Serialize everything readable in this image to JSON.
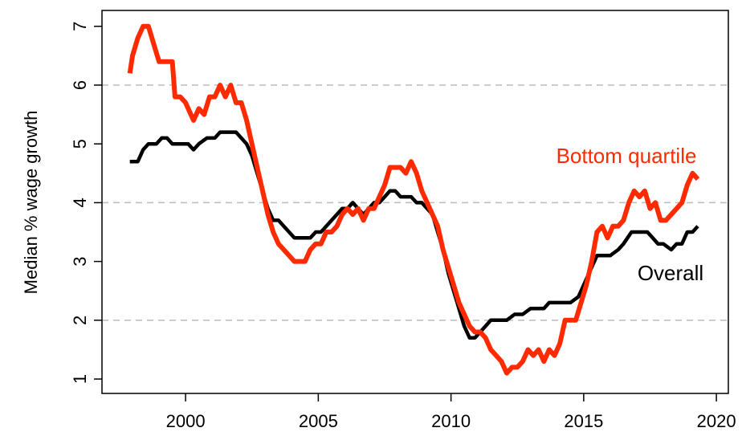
{
  "chart_data": {
    "type": "line",
    "y_label": "Median % wage growth",
    "xlim": [
      1996.85,
      2020.45
    ],
    "xticks": [
      2000,
      2005,
      2010,
      2015,
      2020
    ],
    "ylim": [
      0.755,
      7.27
    ],
    "yticks": [
      1,
      2,
      3,
      4,
      5,
      6,
      7
    ],
    "grid_values": [
      2,
      4,
      6
    ],
    "grid": true,
    "series": [
      {
        "name": "Bottom quartile",
        "color": "#ff2a00",
        "x": [
          1997.9,
          1998.0,
          1998.2,
          1998.4,
          1998.6,
          1998.8,
          1999.0,
          1999.3,
          1999.5,
          1999.6,
          1999.8,
          2000.0,
          2000.2,
          2000.3,
          2000.5,
          2000.7,
          2000.9,
          2001.1,
          2001.3,
          2001.5,
          2001.7,
          2001.9,
          2002.1,
          2002.3,
          2002.5,
          2002.7,
          2002.9,
          2003.1,
          2003.3,
          2003.5,
          2003.7,
          2003.9,
          2004.1,
          2004.3,
          2004.5,
          2004.7,
          2004.9,
          2005.1,
          2005.3,
          2005.5,
          2005.7,
          2005.9,
          2006.1,
          2006.3,
          2006.5,
          2006.7,
          2006.9,
          2007.1,
          2007.3,
          2007.5,
          2007.7,
          2007.9,
          2008.1,
          2008.3,
          2008.5,
          2008.7,
          2008.9,
          2009.1,
          2009.3,
          2009.5,
          2009.7,
          2009.9,
          2010.1,
          2010.3,
          2010.5,
          2010.7,
          2010.9,
          2011.1,
          2011.3,
          2011.5,
          2011.7,
          2011.9,
          2012.1,
          2012.3,
          2012.5,
          2012.7,
          2012.9,
          2013.1,
          2013.3,
          2013.5,
          2013.7,
          2013.9,
          2014.1,
          2014.3,
          2014.5,
          2014.7,
          2014.9,
          2015.1,
          2015.3,
          2015.5,
          2015.7,
          2015.9,
          2016.1,
          2016.3,
          2016.5,
          2016.7,
          2016.9,
          2017.1,
          2017.3,
          2017.5,
          2017.7,
          2017.9,
          2018.1,
          2018.3,
          2018.5,
          2018.7,
          2018.9,
          2019.1,
          2019.3
        ],
        "values": [
          6.2,
          6.5,
          6.8,
          7.0,
          7.0,
          6.7,
          6.4,
          6.4,
          6.4,
          5.8,
          5.8,
          5.7,
          5.5,
          5.4,
          5.6,
          5.5,
          5.8,
          5.8,
          6.0,
          5.8,
          6.0,
          5.7,
          5.7,
          5.4,
          5.0,
          4.6,
          4.2,
          3.8,
          3.5,
          3.3,
          3.2,
          3.1,
          3.0,
          3.0,
          3.0,
          3.2,
          3.3,
          3.3,
          3.5,
          3.5,
          3.6,
          3.8,
          3.9,
          3.8,
          3.9,
          3.7,
          3.9,
          3.9,
          4.1,
          4.3,
          4.6,
          4.6,
          4.6,
          4.5,
          4.7,
          4.5,
          4.2,
          4.0,
          3.8,
          3.6,
          3.2,
          2.9,
          2.6,
          2.3,
          2.1,
          1.9,
          1.8,
          1.8,
          1.7,
          1.5,
          1.4,
          1.3,
          1.1,
          1.2,
          1.2,
          1.3,
          1.5,
          1.4,
          1.5,
          1.3,
          1.5,
          1.4,
          1.6,
          2.0,
          2.0,
          2.0,
          2.3,
          2.6,
          3.0,
          3.5,
          3.6,
          3.4,
          3.6,
          3.6,
          3.7,
          4.0,
          4.2,
          4.1,
          4.2,
          3.9,
          4.0,
          3.7,
          3.7,
          3.8,
          3.9,
          4.0,
          4.3,
          4.5,
          4.4
        ]
      },
      {
        "name": "Overall",
        "color": "#000000",
        "x": [
          1997.9,
          1998.2,
          1998.4,
          1998.6,
          1998.9,
          1999.1,
          1999.3,
          1999.5,
          1999.8,
          2000.1,
          2000.3,
          2000.5,
          2000.8,
          2001.1,
          2001.3,
          2001.6,
          2001.9,
          2002.1,
          2002.3,
          2002.5,
          2002.7,
          2002.9,
          2003.1,
          2003.3,
          2003.5,
          2003.7,
          2003.9,
          2004.1,
          2004.5,
          2004.7,
          2004.9,
          2005.1,
          2005.3,
          2005.5,
          2005.7,
          2005.9,
          2006.1,
          2006.3,
          2006.5,
          2006.7,
          2006.9,
          2007.1,
          2007.3,
          2007.5,
          2007.7,
          2007.9,
          2008.1,
          2008.5,
          2008.7,
          2008.9,
          2009.1,
          2009.3,
          2009.5,
          2009.7,
          2009.9,
          2010.1,
          2010.3,
          2010.5,
          2010.7,
          2010.9,
          2011.1,
          2011.3,
          2011.5,
          2011.9,
          2012.1,
          2012.4,
          2012.7,
          2013.0,
          2013.5,
          2013.7,
          2014.0,
          2014.5,
          2014.8,
          2015.0,
          2015.3,
          2015.5,
          2015.8,
          2016.0,
          2016.3,
          2016.5,
          2016.8,
          2017.1,
          2017.4,
          2017.6,
          2017.8,
          2018.0,
          2018.3,
          2018.5,
          2018.7,
          2018.9,
          2019.1,
          2019.3
        ],
        "values": [
          4.7,
          4.7,
          4.9,
          5.0,
          5.0,
          5.1,
          5.1,
          5.0,
          5.0,
          5.0,
          4.9,
          5.0,
          5.1,
          5.1,
          5.2,
          5.2,
          5.2,
          5.1,
          5.0,
          4.8,
          4.5,
          4.2,
          3.9,
          3.7,
          3.7,
          3.6,
          3.5,
          3.4,
          3.4,
          3.4,
          3.5,
          3.5,
          3.6,
          3.7,
          3.8,
          3.9,
          3.9,
          4.0,
          3.9,
          3.8,
          3.9,
          4.0,
          4.0,
          4.1,
          4.2,
          4.2,
          4.1,
          4.1,
          4.0,
          4.0,
          3.9,
          3.8,
          3.5,
          3.2,
          2.8,
          2.5,
          2.2,
          1.9,
          1.7,
          1.7,
          1.8,
          1.9,
          2.0,
          2.0,
          2.0,
          2.1,
          2.1,
          2.2,
          2.2,
          2.3,
          2.3,
          2.3,
          2.4,
          2.6,
          2.9,
          3.1,
          3.1,
          3.1,
          3.2,
          3.3,
          3.5,
          3.5,
          3.5,
          3.4,
          3.3,
          3.3,
          3.2,
          3.3,
          3.3,
          3.5,
          3.5,
          3.6
        ]
      }
    ]
  }
}
